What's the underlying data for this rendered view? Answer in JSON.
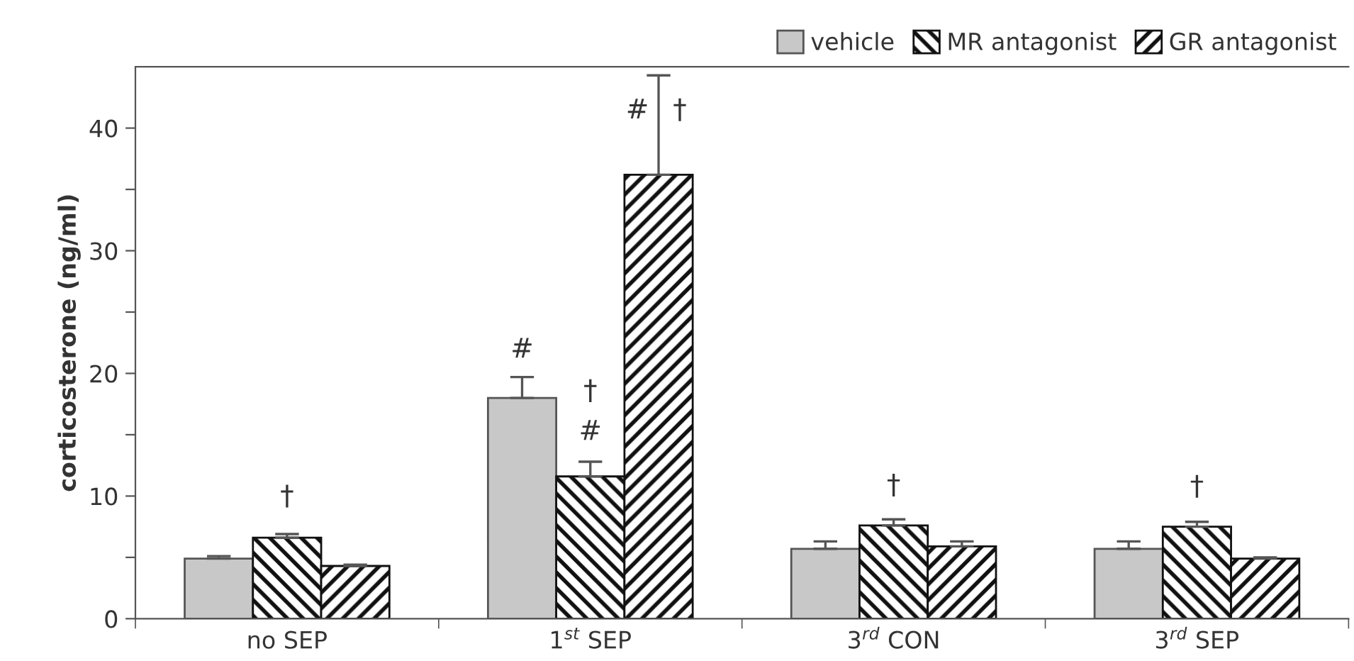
{
  "chart_data": {
    "type": "bar",
    "ylabel": "corticosterone (ng/ml)",
    "categories": [
      "no SEP",
      "1$^{st}$ SEP",
      "3$^{rd}$ CON",
      "3$^{rd}$ SEP"
    ],
    "series": [
      {
        "name": "vehicle",
        "color": "#c8c8c8",
        "values": [
          4.9,
          18.0,
          5.7,
          5.7
        ],
        "errors": [
          [
            4.9,
            5.1
          ],
          [
            18.0,
            19.7
          ],
          [
            5.7,
            6.3
          ],
          [
            5.7,
            6.3
          ]
        ]
      },
      {
        "name": "MR antagonist",
        "color": "#111111",
        "values": [
          6.6,
          11.6,
          7.6,
          7.5
        ],
        "errors": [
          [
            6.6,
            6.9
          ],
          [
            11.6,
            12.8
          ],
          [
            7.6,
            8.1
          ],
          [
            7.5,
            7.9
          ]
        ]
      },
      {
        "name": "GR antagonist",
        "color": "#111111",
        "values": [
          4.3,
          36.2,
          5.9,
          4.9
        ],
        "errors": [
          [
            4.3,
            4.4
          ],
          [
            36.2,
            44.3
          ],
          [
            5.9,
            6.3
          ],
          [
            4.9,
            5.0
          ]
        ]
      }
    ],
    "ylim": [
      0,
      45
    ],
    "yticks": [
      0,
      {
        "value": 5,
        "label": null
      },
      10,
      {
        "value": 15,
        "label": null
      },
      20,
      {
        "value": 25,
        "label": null
      },
      30,
      {
        "value": 35,
        "label": null
      },
      40
    ],
    "annotations": [
      "†",
      "#",
      "†",
      "#",
      "#",
      "†",
      "†",
      "†"
    ],
    "legend": "top right",
    "grid": false
  }
}
